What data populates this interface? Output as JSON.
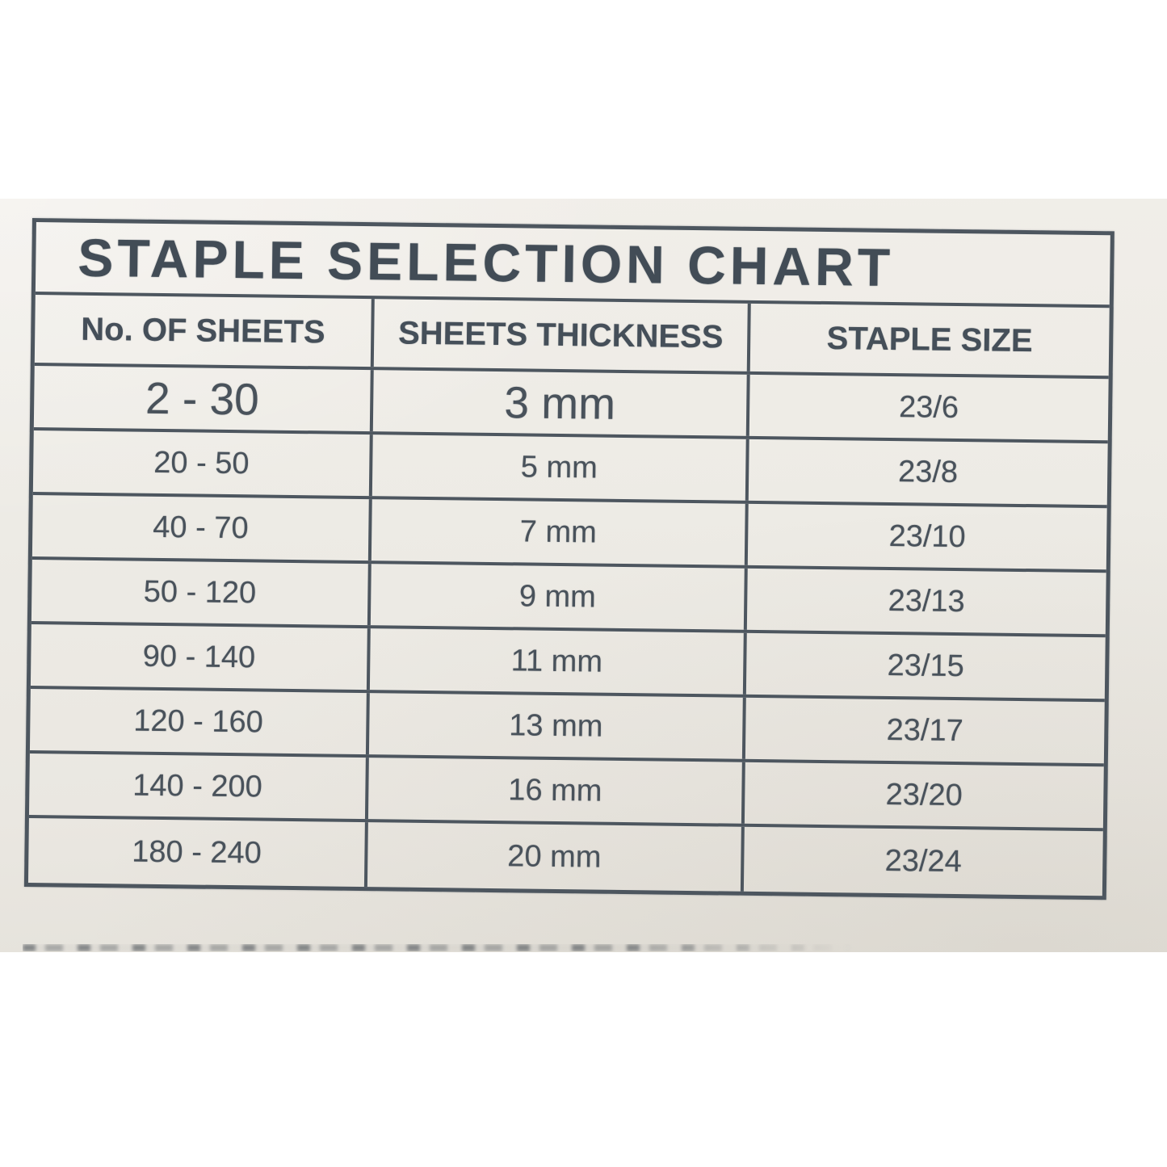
{
  "chart_data": {
    "type": "table",
    "title": "STAPLE SELECTION CHART",
    "columns": [
      "No. OF SHEETS",
      "SHEETS THICKNESS",
      "STAPLE SIZE"
    ],
    "rows": [
      [
        "2 - 30",
        "3 mm",
        "23/6"
      ],
      [
        "20 - 50",
        "5 mm",
        "23/8"
      ],
      [
        "40 - 70",
        "7 mm",
        "23/10"
      ],
      [
        "50 - 120",
        "9 mm",
        "23/13"
      ],
      [
        "90 - 140",
        "11 mm",
        "23/15"
      ],
      [
        "120 - 160",
        "13 mm",
        "23/17"
      ],
      [
        "140 - 200",
        "16 mm",
        "23/20"
      ],
      [
        "180 - 240",
        "20 mm",
        "23/24"
      ]
    ],
    "layout_hints": {
      "grid": "on",
      "title_alignment": "left",
      "cell_alignment": "center",
      "first_data_row_enlarged": true
    }
  },
  "colors": {
    "paper": "#edeae4",
    "ink": "#49525b",
    "grid_line": "#4d565f",
    "page_background": "#ffffff"
  }
}
